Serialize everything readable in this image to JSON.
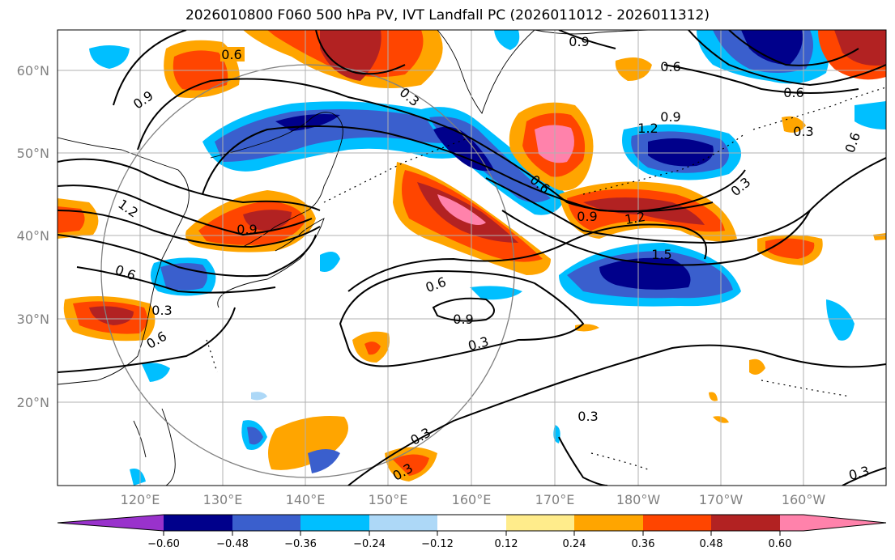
{
  "title": "2026010800 F060 500 hPa PV, IVT Landfall PC (2026011012 - 2026011312)",
  "map": {
    "lon_labels": [
      "120°E",
      "130°E",
      "140°E",
      "150°E",
      "160°E",
      "170°E",
      "180°W",
      "170°W",
      "160°W"
    ],
    "lat_labels": [
      "60°N",
      "50°N",
      "40°N",
      "30°N",
      "20°N"
    ],
    "contour_labels": [
      "0.6",
      "0.9",
      "0.3",
      "0.9",
      "0.6",
      "0.6",
      "1.2",
      "0.9",
      "1.2",
      "0.9",
      "0.6",
      "0.3",
      "0.6",
      "0.9",
      "1.2",
      "1.5",
      "0.6",
      "0.3",
      "0.6",
      "0.9",
      "0.3",
      "0.3",
      "0.3",
      "0.3",
      "0.3",
      "0.6",
      "0.3"
    ]
  },
  "colorbar": {
    "tick_labels": [
      "−0.60",
      "−0.48",
      "−0.36",
      "−0.24",
      "−0.12",
      "0.12",
      "0.24",
      "0.36",
      "0.48",
      "0.60"
    ],
    "colors": [
      "#9932cc",
      "#00008b",
      "#3a5fcd",
      "#00bfff",
      "#add8f7",
      "#ffffff",
      "#ffec8b",
      "#ffa500",
      "#ff4500",
      "#b22222",
      "#ff82ab",
      "#ff82ab"
    ]
  }
}
